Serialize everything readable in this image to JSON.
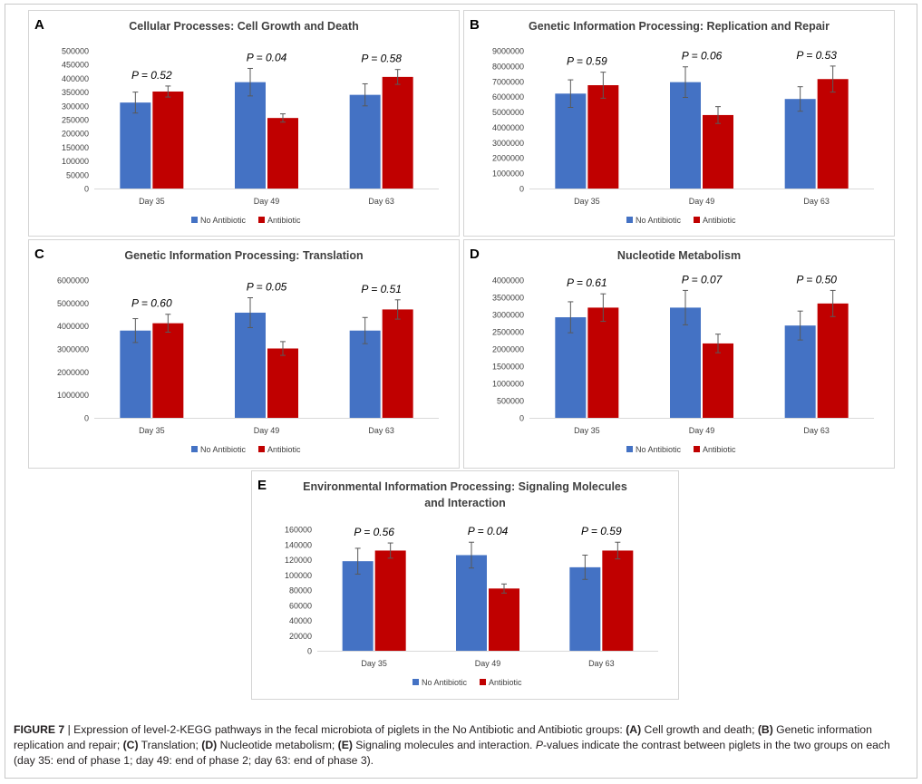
{
  "colors": {
    "no_antibiotic": "#4472C4",
    "antibiotic": "#C00000",
    "error_bar": "#595959",
    "axis_text": "#404040",
    "title_text": "#404040"
  },
  "chart_data": [
    {
      "id": "A",
      "letter": "A",
      "type": "bar",
      "title": [
        "Cellular Processes: Cell Growth and Death"
      ],
      "categories": [
        "Day 35",
        "Day 49",
        "Day 63"
      ],
      "series": [
        {
          "name": "No Antibiotic",
          "values": [
            312000,
            386000,
            340000
          ],
          "errors": [
            38000,
            50000,
            40000
          ]
        },
        {
          "name": "Antibiotic",
          "values": [
            352000,
            256000,
            405000
          ],
          "errors": [
            20000,
            15000,
            27000
          ]
        }
      ],
      "p_labels": [
        "P = 0.52",
        "P = 0.04",
        "P = 0.58"
      ],
      "yticks": [
        "0",
        "50000",
        "100000",
        "150000",
        "200000",
        "250000",
        "300000",
        "350000",
        "400000",
        "450000",
        "500000"
      ],
      "ylim": [
        0,
        500000
      ],
      "legend": [
        "No Antibiotic",
        "Antibiotic"
      ]
    },
    {
      "id": "B",
      "letter": "B",
      "type": "bar",
      "title": [
        "Genetic Information Processing: Replication and Repair"
      ],
      "categories": [
        "Day 35",
        "Day 49",
        "Day 63"
      ],
      "series": [
        {
          "name": "No Antibiotic",
          "values": [
            6200000,
            6950000,
            5850000
          ],
          "errors": [
            900000,
            1000000,
            800000
          ]
        },
        {
          "name": "Antibiotic",
          "values": [
            6750000,
            4800000,
            7150000
          ],
          "errors": [
            850000,
            550000,
            850000
          ]
        }
      ],
      "p_labels": [
        "P = 0.59",
        "P = 0.06",
        "P = 0.53"
      ],
      "yticks": [
        "0",
        "1000000",
        "2000000",
        "3000000",
        "4000000",
        "5000000",
        "6000000",
        "7000000",
        "8000000",
        "9000000"
      ],
      "ylim": [
        0,
        9000000
      ],
      "legend": [
        "No Antibiotic",
        "Antibiotic"
      ]
    },
    {
      "id": "C",
      "letter": "C",
      "type": "bar",
      "title": [
        "Genetic Information Processing: Translation"
      ],
      "categories": [
        "Day 35",
        "Day 49",
        "Day 63"
      ],
      "series": [
        {
          "name": "No Antibiotic",
          "values": [
            3800000,
            4580000,
            3800000
          ],
          "errors": [
            520000,
            650000,
            570000
          ]
        },
        {
          "name": "Antibiotic",
          "values": [
            4120000,
            3020000,
            4720000
          ],
          "errors": [
            390000,
            300000,
            420000
          ]
        }
      ],
      "p_labels": [
        "P = 0.60",
        "P = 0.05",
        "P = 0.51"
      ],
      "yticks": [
        "0",
        "1000000",
        "2000000",
        "3000000",
        "4000000",
        "5000000",
        "6000000"
      ],
      "ylim": [
        0,
        6000000
      ],
      "legend": [
        "No Antibiotic",
        "Antibiotic"
      ]
    },
    {
      "id": "D",
      "letter": "D",
      "type": "bar",
      "title": [
        "Nucleotide Metabolism"
      ],
      "categories": [
        "Day 35",
        "Day 49",
        "Day 63"
      ],
      "series": [
        {
          "name": "No Antibiotic",
          "values": [
            2920000,
            3200000,
            2680000
          ],
          "errors": [
            450000,
            500000,
            420000
          ]
        },
        {
          "name": "Antibiotic",
          "values": [
            3200000,
            2160000,
            3320000
          ],
          "errors": [
            400000,
            270000,
            380000
          ]
        }
      ],
      "p_labels": [
        "P = 0.61",
        "P = 0.07",
        "P = 0.50"
      ],
      "yticks": [
        "0",
        "500000",
        "1000000",
        "1500000",
        "2000000",
        "2500000",
        "3000000",
        "3500000",
        "4000000"
      ],
      "ylim": [
        0,
        4000000
      ],
      "legend": [
        "No Antibiotic",
        "Antibiotic"
      ]
    },
    {
      "id": "E",
      "letter": "E",
      "type": "bar",
      "title": [
        "Environmental Information Processing: Signaling Molecules",
        "and Interaction"
      ],
      "categories": [
        "Day 35",
        "Day 49",
        "Day 63"
      ],
      "series": [
        {
          "name": "No Antibiotic",
          "values": [
            118000,
            126000,
            110000
          ],
          "errors": [
            17000,
            17000,
            16000
          ]
        },
        {
          "name": "Antibiotic",
          "values": [
            132000,
            82000,
            132000
          ],
          "errors": [
            10000,
            6000,
            11000
          ]
        }
      ],
      "p_labels": [
        "P = 0.56",
        "P = 0.04",
        "P = 0.59"
      ],
      "yticks": [
        "0",
        "20000",
        "40000",
        "60000",
        "80000",
        "100000",
        "120000",
        "140000",
        "160000"
      ],
      "ylim": [
        0,
        160000
      ],
      "legend": [
        "No Antibiotic",
        "Antibiotic"
      ]
    }
  ],
  "caption": {
    "label": "FIGURE 7",
    "sep": " | ",
    "part1": "Expression of level-2-KEGG pathways in the fecal microbiota of piglets in the No Antibiotic and Antibiotic groups: ",
    "a_tag": "(A)",
    "a_text": " Cell growth and death; ",
    "b_tag": "(B)",
    "b_text": " Genetic information replication and repair; ",
    "c_tag": "(C)",
    "c_text": " Translation; ",
    "d_tag": "(D)",
    "d_text": " Nucleotide metabolism; ",
    "e_tag": "(E)",
    "e_text": " Signaling molecules and interaction. ",
    "p_italic": "P",
    "tail": "-values indicate the contrast between piglets in the two groups on each (day 35: end of phase 1; day 49: end of phase 2; day 63: end of phase 3)."
  }
}
